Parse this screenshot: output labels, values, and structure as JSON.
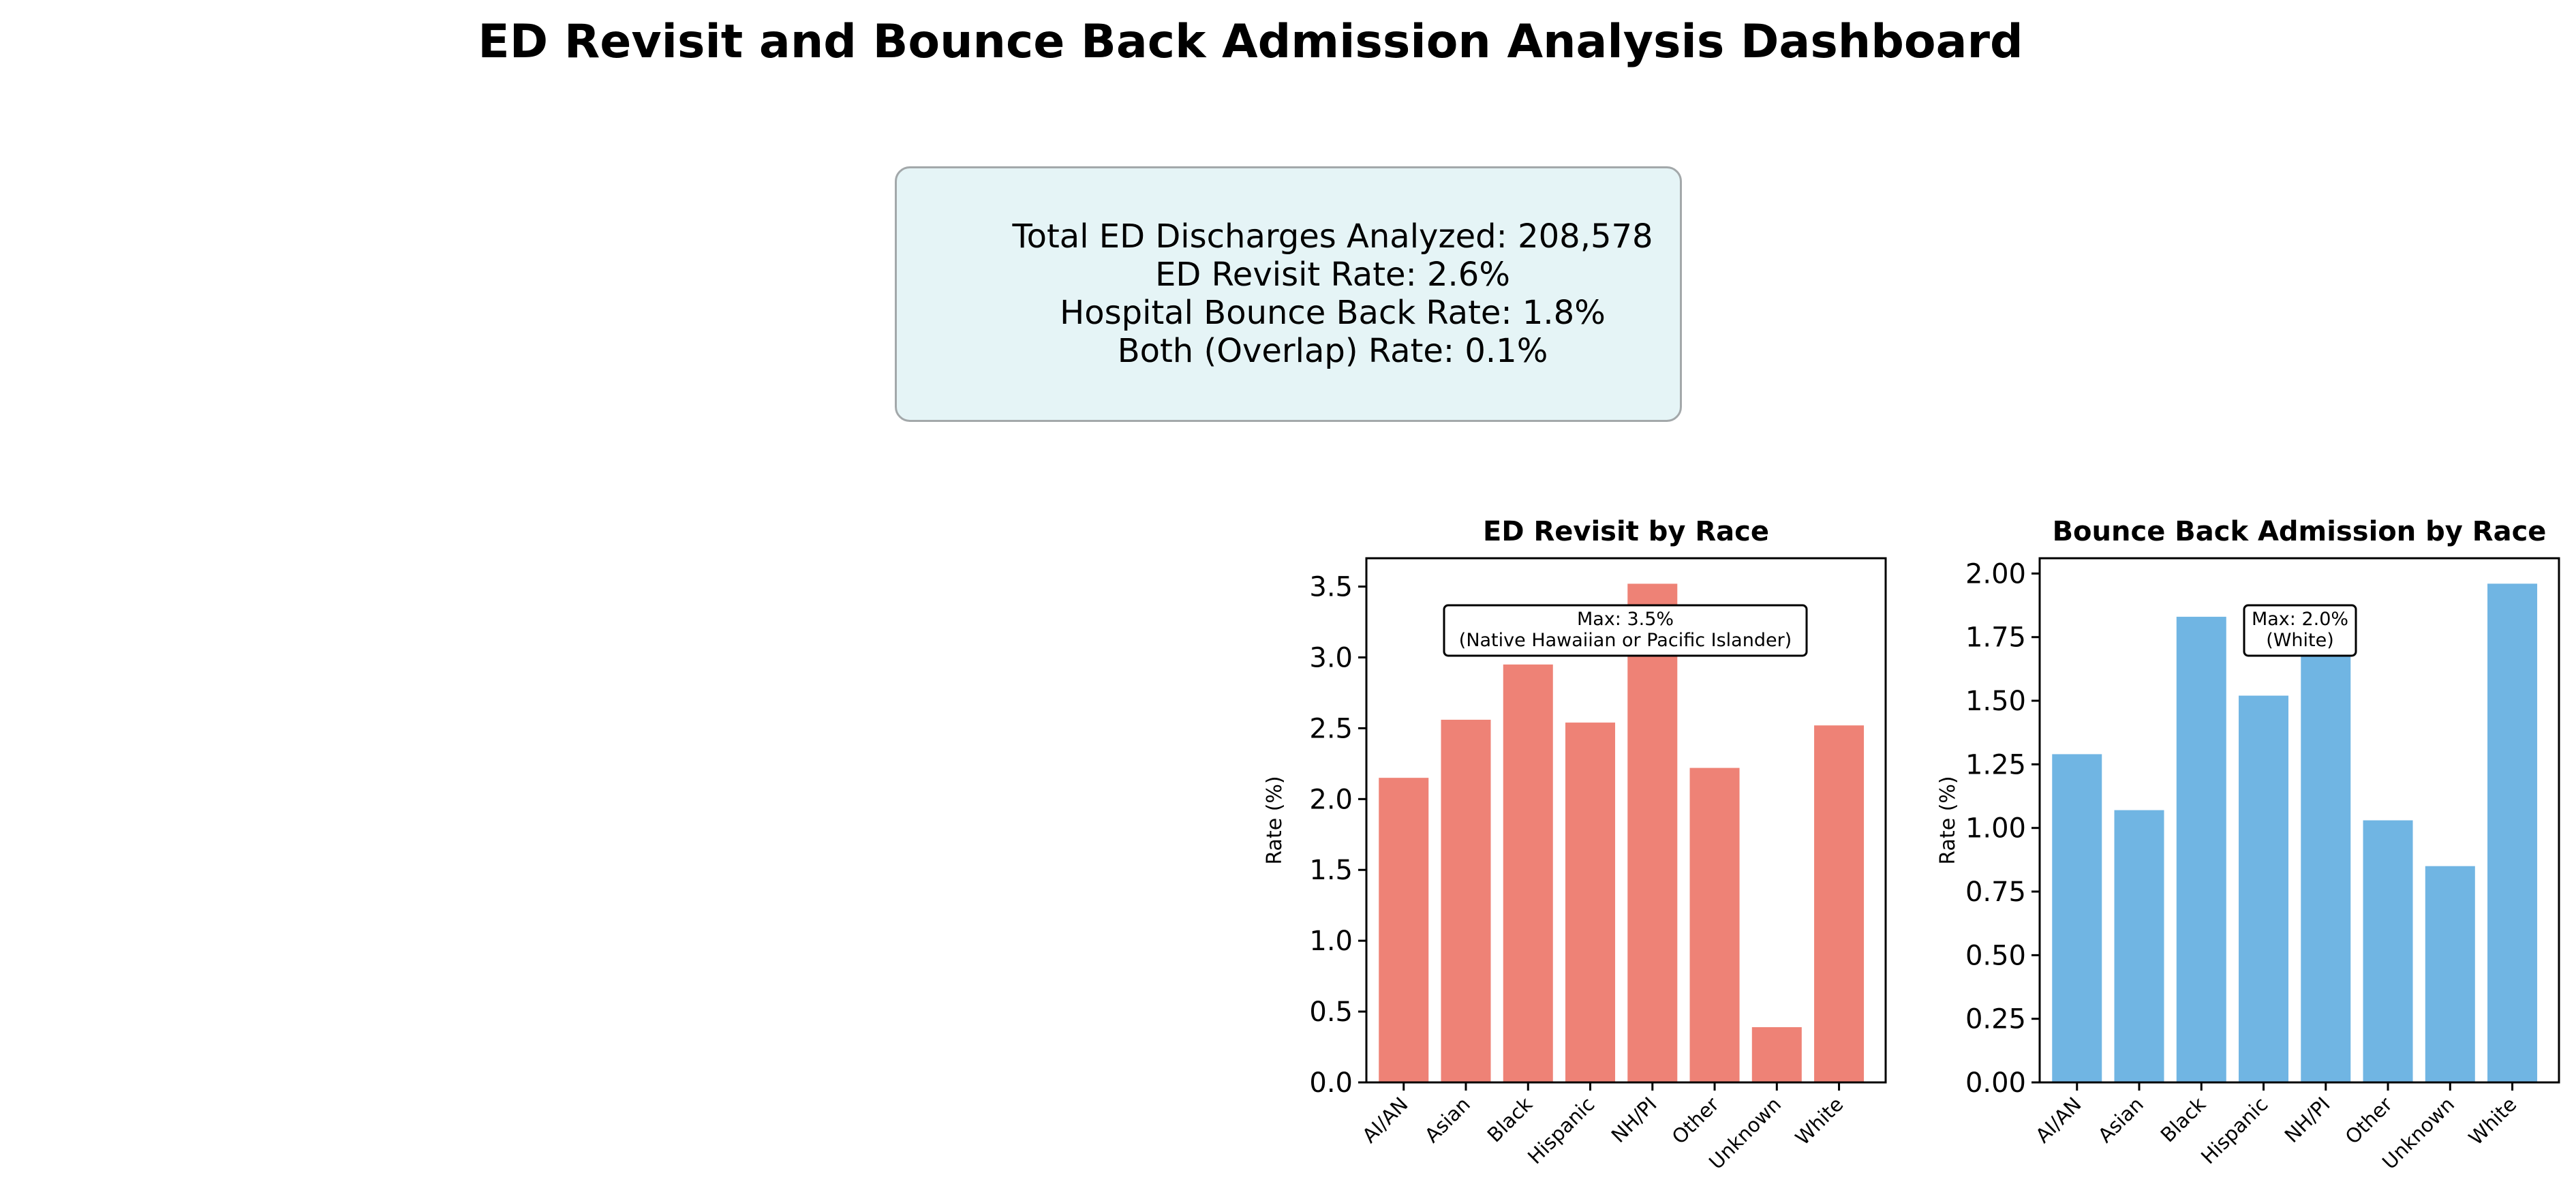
{
  "title": "ED Revisit and Bounce Back Admission Analysis Dashboard",
  "summary": {
    "lines": [
      "Total ED Discharges Analyzed: 208,578",
      "ED Revisit Rate: 2.6%",
      "Hospital Bounce Back Rate: 1.8%",
      "Both (Overlap) Rate: 0.1%"
    ]
  },
  "chart_data": [
    {
      "type": "bar",
      "title": "ED Revisit by Race",
      "xlabel": "",
      "ylabel": "Rate (%)",
      "categories": [
        "AI/AN",
        "Asian",
        "Black",
        "Hispanic",
        "NH/PI",
        "Other",
        "Unknown",
        "White"
      ],
      "values": [
        2.15,
        2.56,
        2.95,
        2.54,
        3.52,
        2.22,
        0.39,
        2.52
      ],
      "ylim": [
        0,
        3.7
      ],
      "yticks": [
        "0.0",
        "0.5",
        "1.0",
        "1.5",
        "2.0",
        "2.5",
        "3.0",
        "3.5"
      ],
      "color": "#ee8276",
      "annotation": [
        "Max: 3.5%",
        "(Native Hawaiian or Pacific Islander)"
      ],
      "grid": false,
      "legend": "none"
    },
    {
      "type": "bar",
      "title": "Bounce Back Admission by Race",
      "xlabel": "",
      "ylabel": "Rate (%)",
      "categories": [
        "AI/AN",
        "Asian",
        "Black",
        "Hispanic",
        "NH/PI",
        "Other",
        "Unknown",
        "White"
      ],
      "values": [
        1.29,
        1.07,
        1.83,
        1.52,
        1.7,
        1.03,
        0.85,
        1.96
      ],
      "ylim": [
        0,
        2.06
      ],
      "yticks": [
        "0.00",
        "0.25",
        "0.50",
        "0.75",
        "1.00",
        "1.25",
        "1.50",
        "1.75",
        "2.00"
      ],
      "color": "#70b5e3",
      "annotation": [
        "Max: 2.0%",
        "(White)"
      ],
      "grid": false,
      "legend": "none"
    }
  ]
}
